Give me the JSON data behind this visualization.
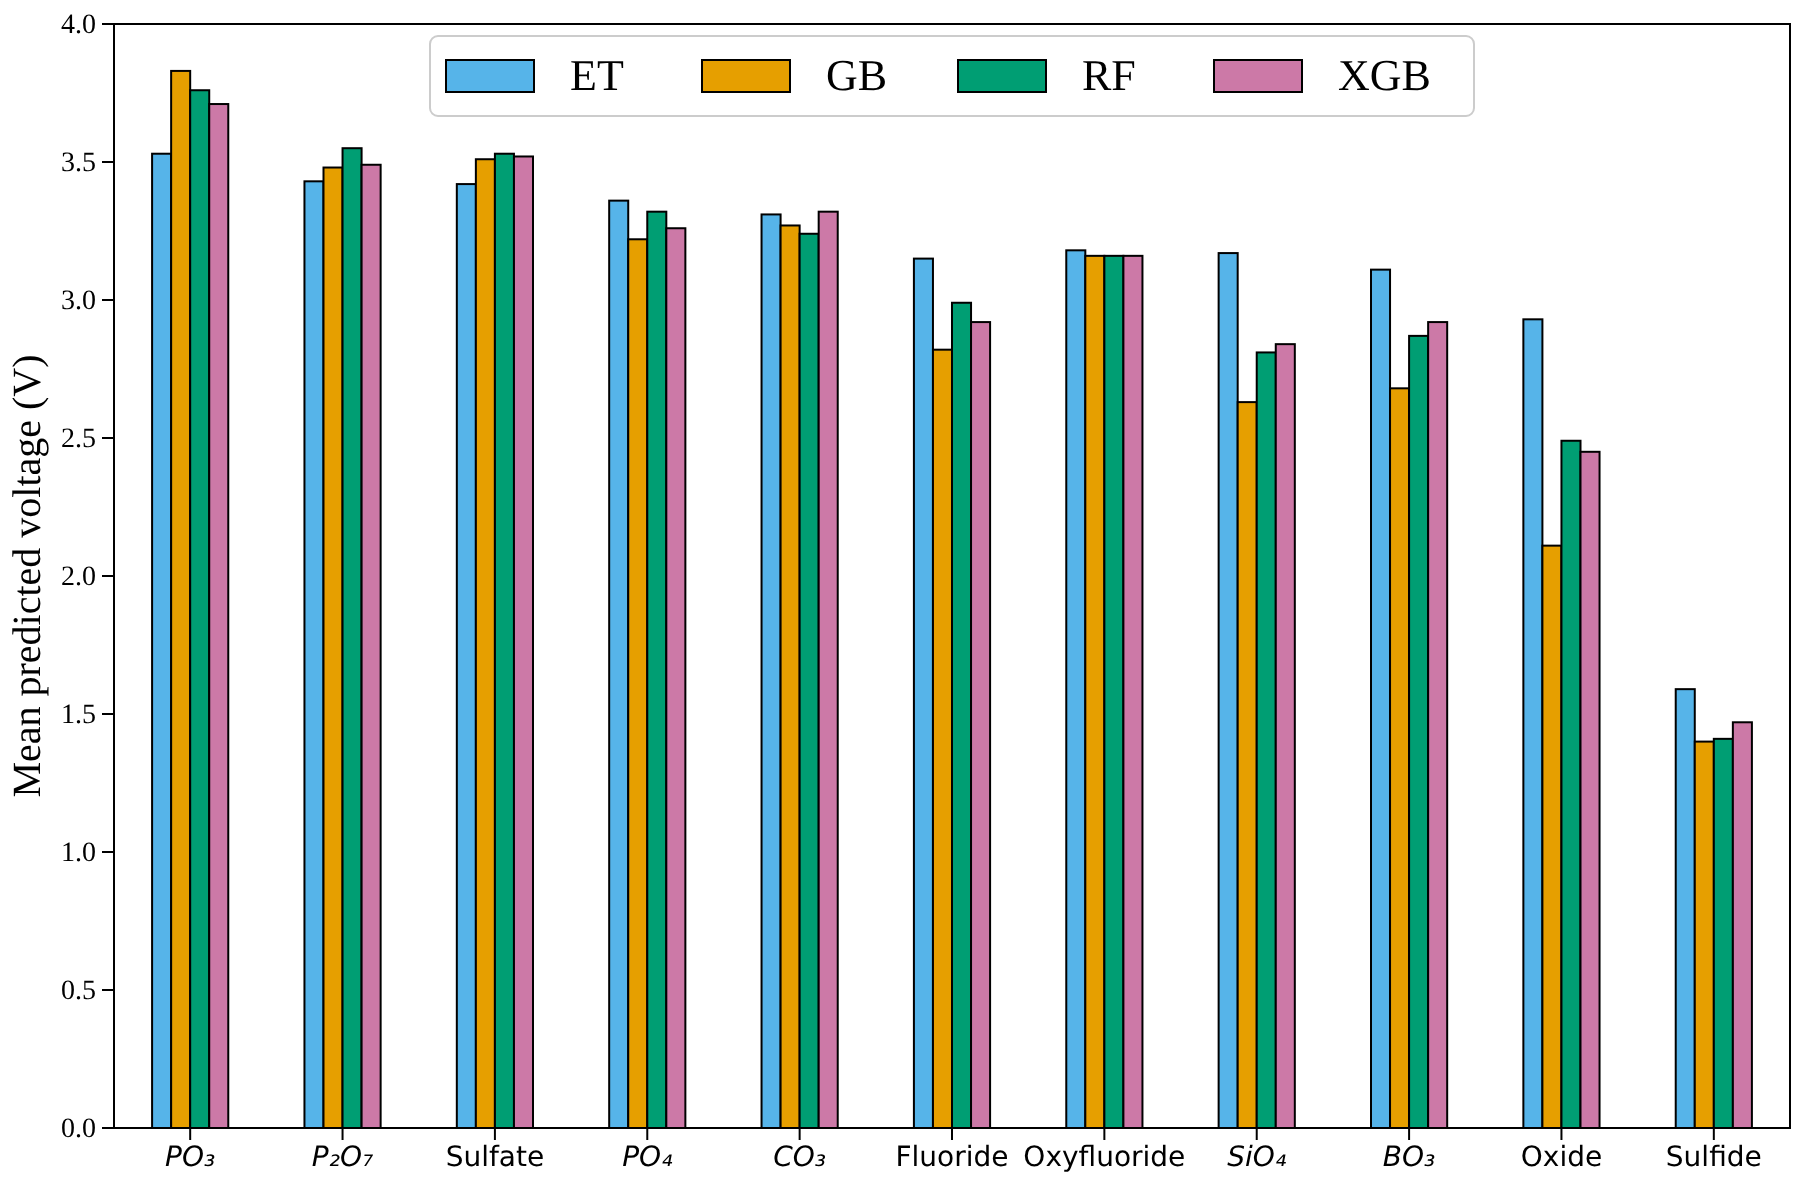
{
  "chart_data": {
    "type": "bar",
    "ylabel": "Mean predicted voltage (V)",
    "categories": [
      "PO₃",
      "P₂O₇",
      "Sulfate",
      "PO₄",
      "CO₃",
      "Fluoride",
      "Oxyfluoride",
      "SiO₄",
      "BO₃",
      "Oxide",
      "Sulfide"
    ],
    "series": [
      {
        "name": "ET",
        "color": "#56b4e9",
        "values": [
          3.53,
          3.43,
          3.42,
          3.36,
          3.31,
          3.15,
          3.18,
          3.17,
          3.11,
          2.93,
          1.59
        ]
      },
      {
        "name": "GB",
        "color": "#e69f00",
        "values": [
          3.83,
          3.48,
          3.51,
          3.22,
          3.27,
          2.82,
          3.16,
          2.63,
          2.68,
          2.11,
          1.4
        ]
      },
      {
        "name": "RF",
        "color": "#009e73",
        "values": [
          3.76,
          3.55,
          3.53,
          3.32,
          3.24,
          2.99,
          3.16,
          2.81,
          2.87,
          2.49,
          1.41
        ]
      },
      {
        "name": "XGB",
        "color": "#cc79a7",
        "values": [
          3.71,
          3.49,
          3.52,
          3.26,
          3.32,
          2.92,
          3.16,
          2.84,
          2.92,
          2.45,
          1.47
        ]
      }
    ],
    "ylim": [
      0,
      4.0
    ],
    "yticks": [
      {
        "value": 0,
        "label": "0.0"
      },
      0.5,
      {
        "value": 1,
        "label": "1.0"
      },
      1.5,
      {
        "value": 2,
        "label": "2.0"
      },
      2.5,
      {
        "value": 3,
        "label": "3.0"
      },
      3.5,
      {
        "value": 4,
        "label": "4.0"
      }
    ],
    "legend": "top",
    "grid": false
  }
}
